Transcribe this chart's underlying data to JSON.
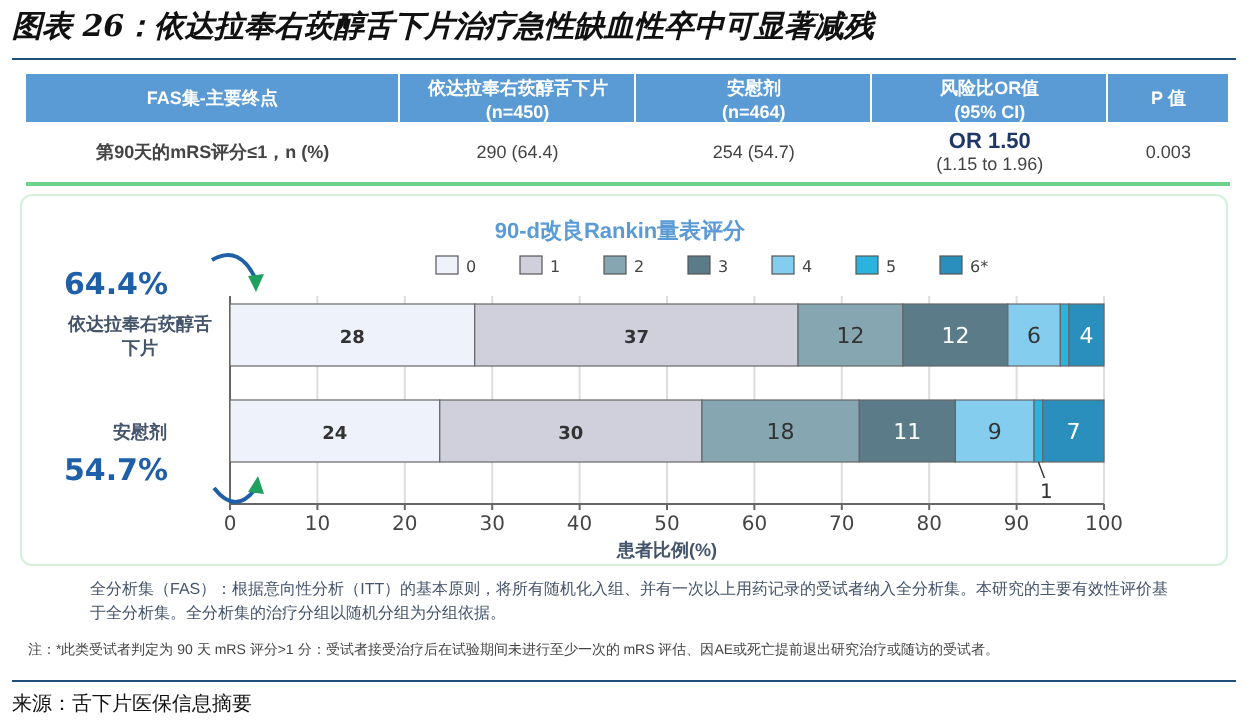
{
  "chart_data": {
    "type": "bar",
    "orientation": "horizontal",
    "stacked": true,
    "title": "图表 26：依达拉奉右莰醇舌下片治疗急性缺血性卒中可显著减残",
    "subtitle": "90-d改良Rankin量表评分",
    "xlabel": "患者比例(%)",
    "categories": [
      "依达拉奉右莰醇舌下片",
      "安慰剂"
    ],
    "series": [
      {
        "name": "0",
        "color": "#eef3fb",
        "values": [
          28,
          24
        ],
        "value_labels": [
          "28",
          "24"
        ]
      },
      {
        "name": "1",
        "color": "#cfd0dc",
        "values": [
          37,
          30
        ],
        "value_labels": [
          "37",
          "30"
        ]
      },
      {
        "name": "2",
        "color": "#86a7b2",
        "values": [
          12,
          18
        ],
        "value_labels": [
          "12",
          "18"
        ]
      },
      {
        "name": "3",
        "color": "#5b7b88",
        "values": [
          12,
          11
        ],
        "value_labels": [
          "12",
          "11"
        ]
      },
      {
        "name": "4",
        "color": "#85cdef",
        "values": [
          6,
          9
        ],
        "value_labels": [
          "6",
          "9"
        ]
      },
      {
        "name": "5",
        "color": "#2bb3e0",
        "values": [
          1,
          1
        ],
        "value_labels": [
          null,
          "1"
        ]
      },
      {
        "name": "6*",
        "color": "#2a8fbd",
        "values": [
          4,
          7
        ],
        "value_labels": [
          "4",
          "7"
        ]
      }
    ],
    "xlim": [
      0,
      100
    ],
    "xticks": [
      0,
      10,
      20,
      30,
      40,
      50,
      60,
      70,
      80,
      90,
      100
    ],
    "grid": "x",
    "legend": "top",
    "annotations": [
      "FAS集-主要终点",
      "依达拉奉右莰醇舌下片\n(n=450)",
      "安慰剂\n(n=464)",
      "风险比OR值\n(95% CI)",
      "P 值",
      "第90天的mRS评分≤1，n (%)",
      "290 (64.4)",
      "254 (54.7)",
      "OR 1.50\n(1.15 to 1.96)",
      "0.003",
      "64.4%",
      "54.7%",
      "全分析集（FAS）：根据意向性分析（ITT）的基本原则，将所有随机化入组、并有一次以上用药记录的受试者纳入全分析集。本研究的主要有效性评价基于全分析集。全分析集的治疗分组以随机分组为分组依据。",
      "注：*此类受试者判定为 90 天 mRS 评分>1 分：受试者接受治疗后在试验期间未进行至少一次的 mRS 评估、因AE或死亡提前退出研究治疗或随访的受试者。",
      "来源：舌下片医保信息摘要"
    ]
  }
}
